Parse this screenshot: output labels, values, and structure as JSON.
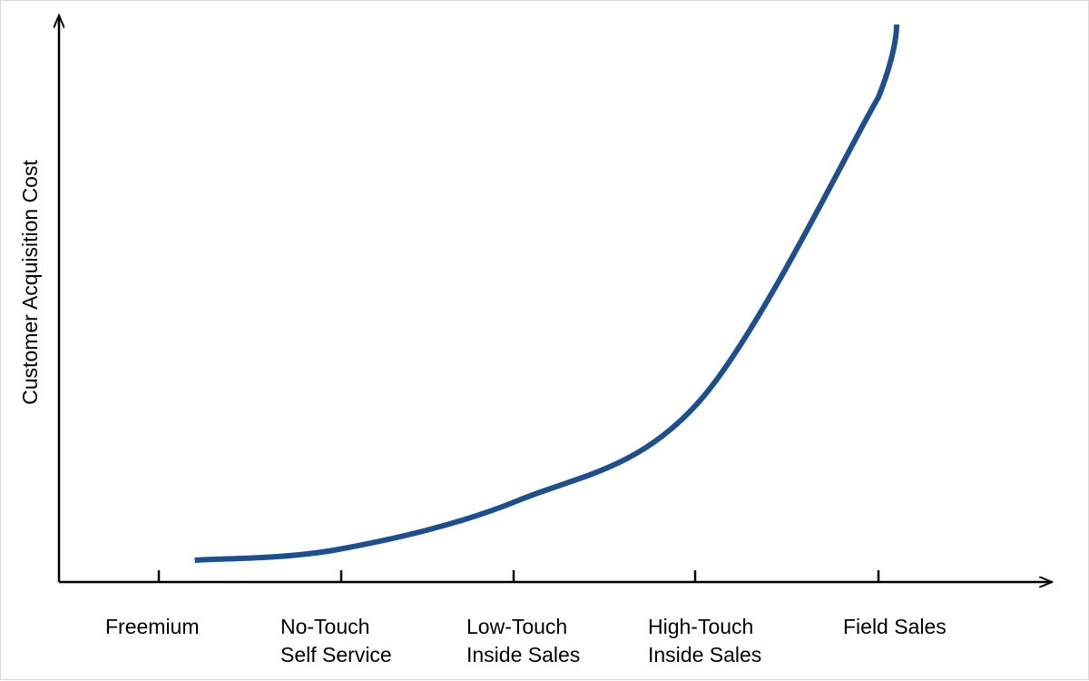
{
  "chart_data": {
    "type": "line",
    "title": "",
    "xlabel": "",
    "ylabel": "Customer Acquisition Cost",
    "categories": [
      [
        "Freemium"
      ],
      [
        "No-Touch",
        "Self Service"
      ],
      [
        "Low-Touch",
        "Inside Sales"
      ],
      [
        "High-Touch",
        "Inside Sales"
      ],
      [
        "Field Sales"
      ]
    ],
    "x": [
      0.2,
      1,
      2,
      3,
      4
    ],
    "series": [
      {
        "values": [
          0.04,
          0.06,
          0.15,
          0.33,
          0.89
        ],
        "color": "#1f4e8c"
      }
    ],
    "x_ticks": [
      0,
      1,
      2,
      3,
      4
    ],
    "ylim": [
      0,
      1
    ],
    "grid": false,
    "legend": "none",
    "tick_labels_visible_y": false,
    "colors": {
      "axis": "#000000",
      "line": "#1f4e8c"
    }
  }
}
